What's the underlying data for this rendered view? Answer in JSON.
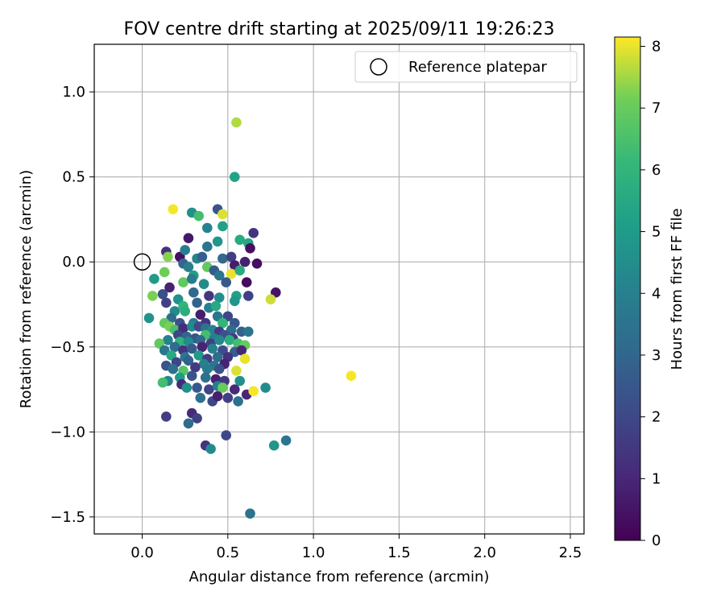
{
  "chart_data": {
    "type": "scatter",
    "title": "FOV centre drift starting at 2025/09/11 19:26:23",
    "xlabel": "Angular distance from reference (arcmin)",
    "ylabel": "Rotation from reference (arcmin)",
    "xlim": [
      -0.28,
      2.58
    ],
    "ylim": [
      -1.6,
      1.28
    ],
    "x_ticks": [
      0.0,
      0.5,
      1.0,
      1.5,
      2.0,
      2.5
    ],
    "x_tick_labels": [
      "0.0",
      "0.5",
      "1.0",
      "1.5",
      "2.0",
      "2.5"
    ],
    "y_ticks": [
      1.0,
      0.5,
      0.0,
      -0.5,
      -1.0,
      -1.5
    ],
    "y_tick_labels": [
      "1.0",
      "0.5",
      "0.0",
      "−0.5",
      "−1.0",
      "−1.5"
    ],
    "grid": true,
    "colorbar": {
      "label": "Hours from first FF file",
      "range": [
        0,
        8.15
      ],
      "ticks": [
        0,
        1,
        2,
        3,
        4,
        5,
        6,
        7,
        8
      ],
      "tick_labels": [
        "0",
        "1",
        "2",
        "3",
        "4",
        "5",
        "6",
        "7",
        "8"
      ],
      "colormap": "viridis"
    },
    "legend": {
      "position": "top-right",
      "entries": [
        "Reference platepar"
      ]
    },
    "reference_point": {
      "x": 0.0,
      "y": 0.0
    },
    "points": [
      [
        0.55,
        0.82,
        7.6
      ],
      [
        0.54,
        0.5,
        5.3
      ],
      [
        0.18,
        0.31,
        8.1
      ],
      [
        0.29,
        0.29,
        4.6
      ],
      [
        0.33,
        0.27,
        6.4
      ],
      [
        0.44,
        0.31,
        2.4
      ],
      [
        0.47,
        0.28,
        7.9
      ],
      [
        0.38,
        0.2,
        4.1
      ],
      [
        0.47,
        0.21,
        5.2
      ],
      [
        0.27,
        0.14,
        0.6
      ],
      [
        0.65,
        0.17,
        1.4
      ],
      [
        0.57,
        0.13,
        5.6
      ],
      [
        0.62,
        0.11,
        5.4
      ],
      [
        0.63,
        0.08,
        0.4
      ],
      [
        0.44,
        0.12,
        4.8
      ],
      [
        0.38,
        0.09,
        3.6
      ],
      [
        0.14,
        0.06,
        1.3
      ],
      [
        0.15,
        0.03,
        7.3
      ],
      [
        0.22,
        0.03,
        0.4
      ],
      [
        0.25,
        0.07,
        3.9
      ],
      [
        0.32,
        0.02,
        4.2
      ],
      [
        0.35,
        0.03,
        2.8
      ],
      [
        0.47,
        0.02,
        3.1
      ],
      [
        0.52,
        0.03,
        1.7
      ],
      [
        0.6,
        0.0,
        0.8
      ],
      [
        0.67,
        -0.01,
        0.3
      ],
      [
        0.54,
        -0.02,
        0.7
      ],
      [
        0.24,
        -0.01,
        3.0
      ],
      [
        0.27,
        -0.03,
        3.9
      ],
      [
        0.38,
        -0.03,
        6.9
      ],
      [
        0.42,
        -0.05,
        2.6
      ],
      [
        0.13,
        -0.06,
        7.1
      ],
      [
        0.3,
        -0.08,
        5.2
      ],
      [
        0.45,
        -0.08,
        3.6
      ],
      [
        0.52,
        -0.07,
        8.0
      ],
      [
        0.57,
        -0.05,
        5.6
      ],
      [
        0.07,
        -0.1,
        5.0
      ],
      [
        0.24,
        -0.12,
        6.9
      ],
      [
        0.29,
        -0.1,
        3.8
      ],
      [
        0.36,
        -0.13,
        4.4
      ],
      [
        0.49,
        -0.12,
        2.6
      ],
      [
        0.61,
        -0.12,
        0.3
      ],
      [
        0.16,
        -0.15,
        0.9
      ],
      [
        0.12,
        -0.19,
        2.2
      ],
      [
        0.21,
        -0.22,
        4.7
      ],
      [
        0.3,
        -0.18,
        3.1
      ],
      [
        0.39,
        -0.2,
        1.5
      ],
      [
        0.45,
        -0.21,
        4.5
      ],
      [
        0.55,
        -0.2,
        5.3
      ],
      [
        0.62,
        -0.2,
        1.8
      ],
      [
        0.78,
        -0.18,
        0.5
      ],
      [
        0.75,
        -0.22,
        7.8
      ],
      [
        0.06,
        -0.2,
        7.2
      ],
      [
        0.14,
        -0.24,
        1.8
      ],
      [
        0.24,
        -0.26,
        6.0
      ],
      [
        0.32,
        -0.24,
        2.9
      ],
      [
        0.39,
        -0.27,
        4.0
      ],
      [
        0.43,
        -0.26,
        5.5
      ],
      [
        0.54,
        -0.23,
        4.8
      ],
      [
        0.19,
        -0.29,
        4.4
      ],
      [
        0.25,
        -0.29,
        5.7
      ],
      [
        0.34,
        -0.31,
        0.7
      ],
      [
        0.44,
        -0.32,
        3.6
      ],
      [
        0.5,
        -0.32,
        2.0
      ],
      [
        0.17,
        -0.33,
        3.2
      ],
      [
        0.04,
        -0.33,
        4.7
      ],
      [
        0.13,
        -0.36,
        6.9
      ],
      [
        0.22,
        -0.36,
        2.3
      ],
      [
        0.3,
        -0.36,
        3.8
      ],
      [
        0.37,
        -0.36,
        1.4
      ],
      [
        0.47,
        -0.36,
        6.0
      ],
      [
        0.54,
        -0.36,
        2.5
      ],
      [
        0.16,
        -0.38,
        7.2
      ],
      [
        0.19,
        -0.4,
        6.5
      ],
      [
        0.24,
        -0.39,
        1.2
      ],
      [
        0.29,
        -0.38,
        4.4
      ],
      [
        0.33,
        -0.38,
        2.1
      ],
      [
        0.37,
        -0.39,
        3.5
      ],
      [
        0.41,
        -0.4,
        4.1
      ],
      [
        0.45,
        -0.41,
        1.6
      ],
      [
        0.52,
        -0.4,
        3.3
      ],
      [
        0.58,
        -0.41,
        2.9
      ],
      [
        0.62,
        -0.41,
        3.6
      ],
      [
        0.21,
        -0.43,
        1.9
      ],
      [
        0.26,
        -0.44,
        3.0
      ],
      [
        0.31,
        -0.45,
        2.5
      ],
      [
        0.37,
        -0.43,
        6.4
      ],
      [
        0.42,
        -0.45,
        3.9
      ],
      [
        0.48,
        -0.43,
        2.3
      ],
      [
        0.53,
        -0.45,
        1.5
      ],
      [
        0.15,
        -0.46,
        4.1
      ],
      [
        0.22,
        -0.47,
        5.9
      ],
      [
        0.27,
        -0.47,
        4.4
      ],
      [
        0.34,
        -0.46,
        3.1
      ],
      [
        0.4,
        -0.48,
        1.8
      ],
      [
        0.45,
        -0.46,
        4.3
      ],
      [
        0.51,
        -0.46,
        5.7
      ],
      [
        0.56,
        -0.48,
        6.4
      ],
      [
        0.6,
        -0.49,
        7.0
      ],
      [
        0.1,
        -0.48,
        6.9
      ],
      [
        0.13,
        -0.52,
        3.7
      ],
      [
        0.19,
        -0.5,
        3.2
      ],
      [
        0.24,
        -0.52,
        1.4
      ],
      [
        0.29,
        -0.51,
        2.6
      ],
      [
        0.35,
        -0.5,
        0.9
      ],
      [
        0.41,
        -0.51,
        4.0
      ],
      [
        0.47,
        -0.52,
        2.2
      ],
      [
        0.54,
        -0.53,
        2.7
      ],
      [
        0.58,
        -0.52,
        1.0
      ],
      [
        0.17,
        -0.55,
        5.5
      ],
      [
        0.25,
        -0.56,
        3.6
      ],
      [
        0.33,
        -0.55,
        5.0
      ],
      [
        0.38,
        -0.57,
        1.7
      ],
      [
        0.44,
        -0.56,
        3.2
      ],
      [
        0.5,
        -0.56,
        1.3
      ],
      [
        0.6,
        -0.57,
        8.0
      ],
      [
        0.2,
        -0.59,
        1.9
      ],
      [
        0.27,
        -0.58,
        2.8
      ],
      [
        0.36,
        -0.6,
        4.0
      ],
      [
        0.42,
        -0.61,
        3.6
      ],
      [
        0.48,
        -0.6,
        0.9
      ],
      [
        0.14,
        -0.61,
        2.4
      ],
      [
        0.18,
        -0.63,
        3.3
      ],
      [
        0.24,
        -0.64,
        6.7
      ],
      [
        0.31,
        -0.62,
        1.6
      ],
      [
        0.38,
        -0.63,
        3.8
      ],
      [
        0.45,
        -0.63,
        2.3
      ],
      [
        0.55,
        -0.64,
        7.9
      ],
      [
        0.15,
        -0.7,
        4.2
      ],
      [
        0.22,
        -0.68,
        5.0
      ],
      [
        0.29,
        -0.67,
        2.4
      ],
      [
        0.37,
        -0.68,
        3.4
      ],
      [
        0.43,
        -0.69,
        0.8
      ],
      [
        0.48,
        -0.7,
        1.5
      ],
      [
        0.57,
        -0.7,
        4.6
      ],
      [
        0.12,
        -0.71,
        6.4
      ],
      [
        0.23,
        -0.72,
        1.1
      ],
      [
        0.26,
        -0.74,
        4.6
      ],
      [
        0.32,
        -0.74,
        2.6
      ],
      [
        0.39,
        -0.75,
        1.9
      ],
      [
        0.44,
        -0.73,
        3.9
      ],
      [
        0.47,
        -0.74,
        7.0
      ],
      [
        0.54,
        -0.75,
        1.1
      ],
      [
        0.61,
        -0.78,
        1.0
      ],
      [
        0.65,
        -0.76,
        8.1
      ],
      [
        0.72,
        -0.74,
        4.4
      ],
      [
        0.34,
        -0.8,
        3.4
      ],
      [
        0.41,
        -0.82,
        2.0
      ],
      [
        0.44,
        -0.79,
        0.8
      ],
      [
        0.5,
        -0.8,
        1.8
      ],
      [
        0.56,
        -0.82,
        3.4
      ],
      [
        0.29,
        -0.89,
        1.1
      ],
      [
        0.32,
        -0.92,
        1.8
      ],
      [
        0.14,
        -0.91,
        1.7
      ],
      [
        0.27,
        -0.95,
        3.2
      ],
      [
        0.49,
        -1.02,
        2.0
      ],
      [
        0.37,
        -1.08,
        1.3
      ],
      [
        0.4,
        -1.1,
        4.4
      ],
      [
        0.77,
        -1.08,
        4.8
      ],
      [
        0.84,
        -1.05,
        3.6
      ],
      [
        0.63,
        -1.48,
        3.5
      ],
      [
        1.22,
        -0.67,
        8.1
      ]
    ]
  }
}
